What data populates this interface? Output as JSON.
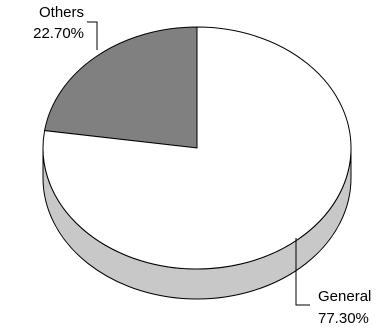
{
  "chart_data": {
    "type": "pie",
    "title": "",
    "slices": [
      {
        "label": "Others",
        "value": 22.7,
        "value_text": "22.70%",
        "color": "#808080",
        "side_color": "#555555"
      },
      {
        "label": "General",
        "value": 77.3,
        "value_text": "77.30%",
        "color": "#ffffff",
        "side_color": "#c8c8c8"
      }
    ],
    "style": "3d",
    "legend": "none"
  }
}
